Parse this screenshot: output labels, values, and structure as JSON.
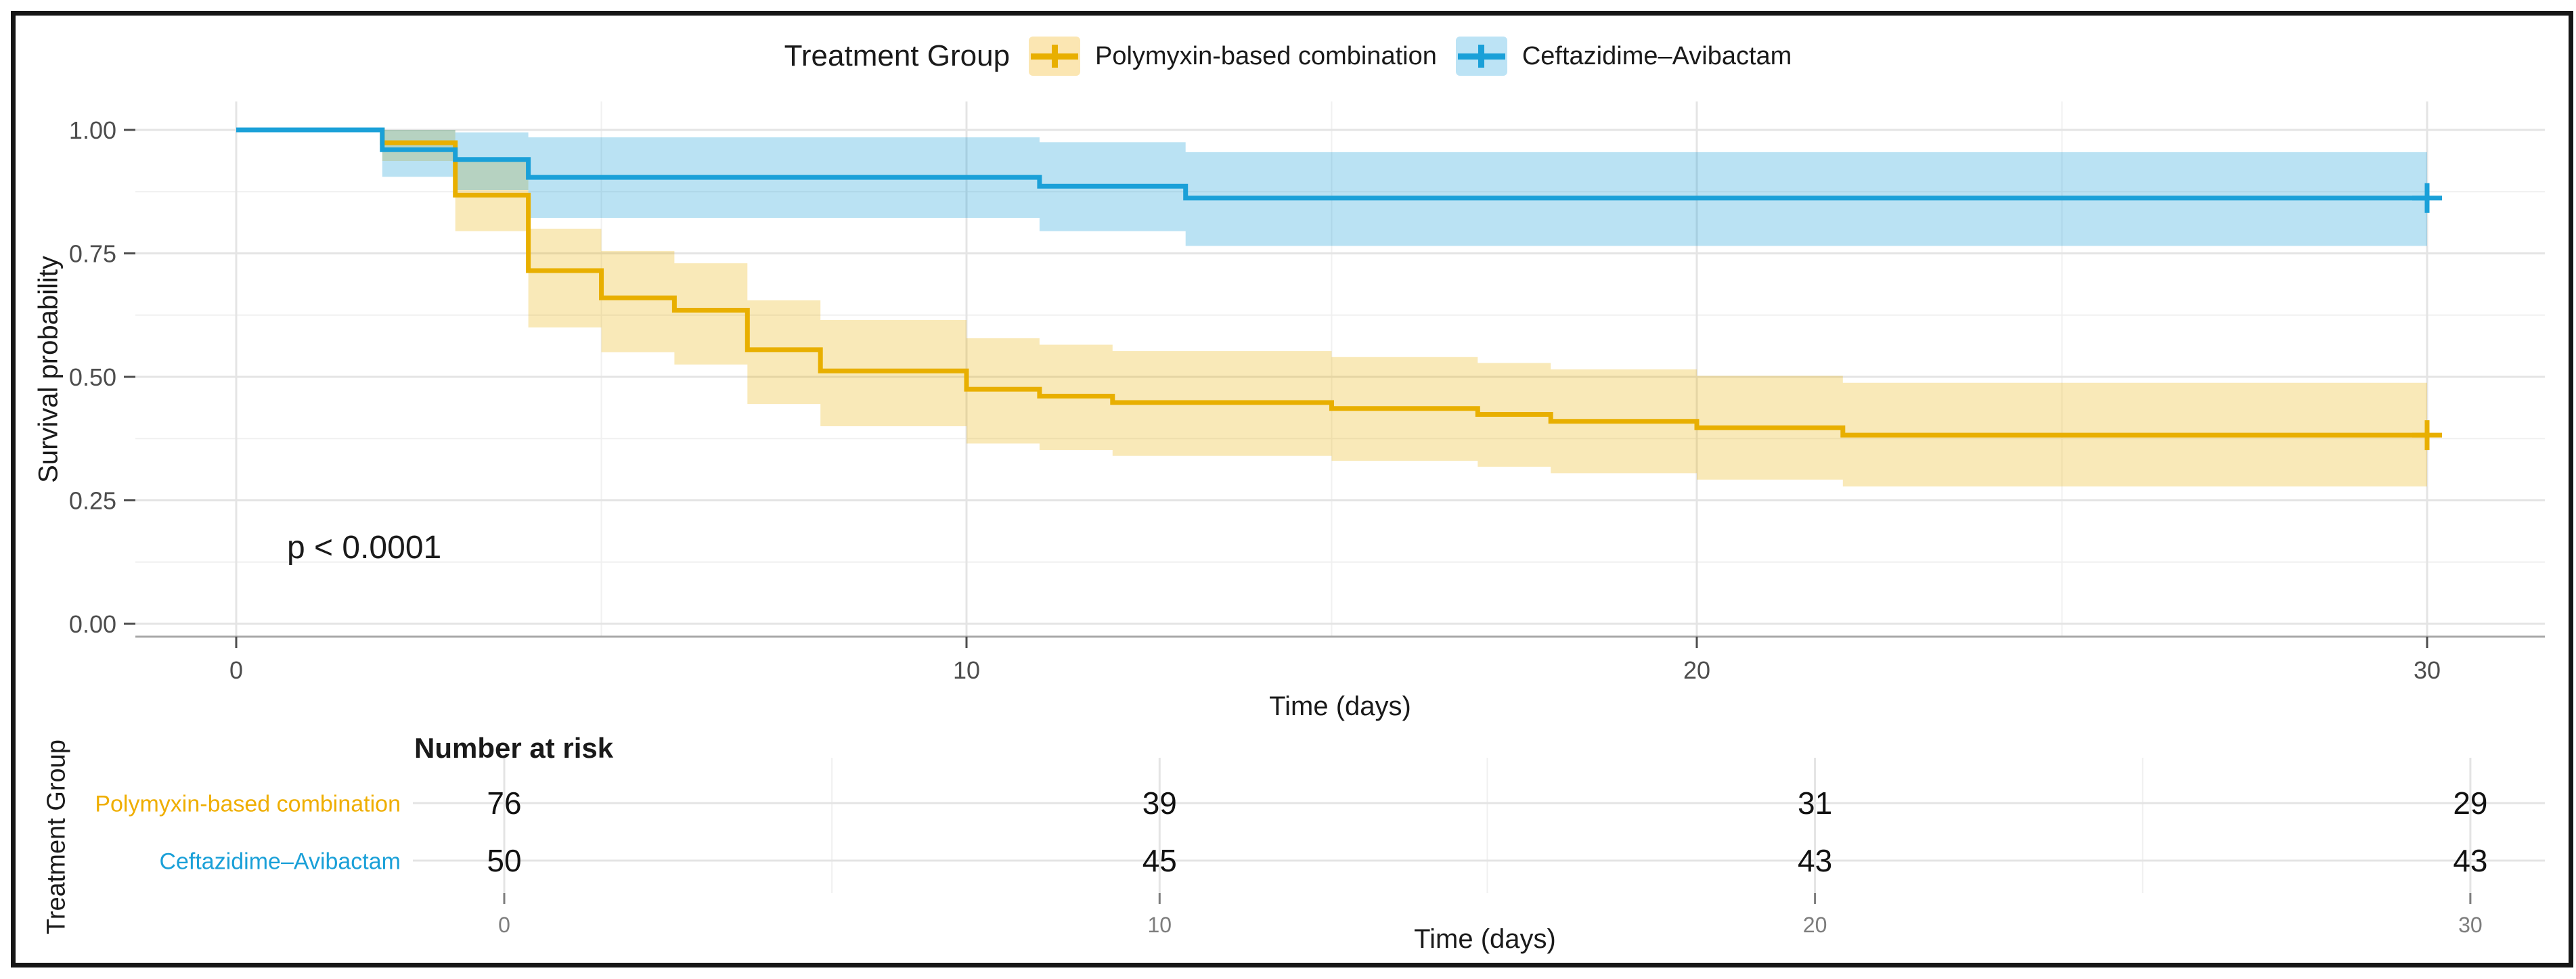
{
  "legend": {
    "title": "Treatment Group",
    "items": [
      {
        "label": "Polymyxin-based combination",
        "color": "#E8AF00",
        "key_fill": "#FBE6B2",
        "glyph": "plus-line-icon"
      },
      {
        "label": "Ceftazidime–Avibactam",
        "color": "#1AA0D8",
        "key_fill": "#BCE3F5",
        "glyph": "plus-line-icon"
      }
    ]
  },
  "chart_data": {
    "type": "line",
    "subtype": "kaplan-meier-step",
    "title": "",
    "xlabel": "Time (days)",
    "ylabel": "Survival probability",
    "annotation": "p < 0.0001",
    "legend_position": "top",
    "grid": true,
    "xlim": [
      0,
      30
    ],
    "ylim": [
      0.0,
      1.0
    ],
    "xticks": [
      0,
      10,
      20,
      30
    ],
    "xtick_labels": [
      "0",
      "10",
      "20",
      "30"
    ],
    "minor_xticks": [
      5,
      15,
      25
    ],
    "yticks": [
      0.0,
      0.25,
      0.5,
      0.75,
      1.0
    ],
    "ytick_labels": [
      "0.00",
      "0.25",
      "0.50",
      "0.75",
      "1.00"
    ],
    "minor_yticks": [
      0.125,
      0.375,
      0.625,
      0.875
    ],
    "series": [
      {
        "name": "Polymyxin-based combination",
        "color": "#E8AF00",
        "band_color": "rgba(233,176,0,0.28)",
        "steps": [
          [
            0,
            1.0
          ],
          [
            2,
            0.974
          ],
          [
            3,
            0.868
          ],
          [
            4,
            0.715
          ],
          [
            5,
            0.66
          ],
          [
            6,
            0.635
          ],
          [
            7,
            0.555
          ],
          [
            8,
            0.512
          ],
          [
            10,
            0.475
          ],
          [
            11,
            0.461
          ],
          [
            12,
            0.448
          ],
          [
            15,
            0.436
          ],
          [
            17,
            0.424
          ],
          [
            18,
            0.41
          ],
          [
            20,
            0.397
          ],
          [
            22,
            0.382
          ],
          [
            30,
            0.382
          ]
        ],
        "censor_times": [
          30
        ],
        "ci": [
          [
            2,
            0.937,
            1.0
          ],
          [
            3,
            0.795,
            0.94
          ],
          [
            4,
            0.6,
            0.8
          ],
          [
            5,
            0.55,
            0.755
          ],
          [
            6,
            0.525,
            0.73
          ],
          [
            7,
            0.445,
            0.655
          ],
          [
            8,
            0.4,
            0.615
          ],
          [
            10,
            0.365,
            0.578
          ],
          [
            11,
            0.352,
            0.565
          ],
          [
            12,
            0.34,
            0.552
          ],
          [
            15,
            0.33,
            0.54
          ],
          [
            17,
            0.318,
            0.528
          ],
          [
            18,
            0.305,
            0.515
          ],
          [
            20,
            0.292,
            0.502
          ],
          [
            22,
            0.278,
            0.488
          ],
          [
            30,
            0.278,
            0.488
          ]
        ]
      },
      {
        "name": "Ceftazidime–Avibactam",
        "color": "#1AA0D8",
        "band_color": "rgba(26,160,216,0.30)",
        "steps": [
          [
            0,
            1.0
          ],
          [
            2,
            0.96
          ],
          [
            3,
            0.94
          ],
          [
            4,
            0.904
          ],
          [
            11,
            0.886
          ],
          [
            13,
            0.862
          ],
          [
            30,
            0.862
          ]
        ],
        "censor_times": [
          30
        ],
        "ci": [
          [
            2,
            0.905,
            1.0
          ],
          [
            3,
            0.878,
            0.995
          ],
          [
            4,
            0.822,
            0.985
          ],
          [
            11,
            0.795,
            0.975
          ],
          [
            13,
            0.765,
            0.955
          ],
          [
            30,
            0.765,
            0.955
          ]
        ]
      }
    ],
    "risk_table": {
      "title": "Number at risk",
      "ylabel": "Treatment Group",
      "xlabel": "Time (days)",
      "xticks": [
        0,
        10,
        20,
        30
      ],
      "xtick_labels": [
        "0",
        "10",
        "20",
        "30"
      ],
      "rows": [
        {
          "label": "Polymyxin-based combination",
          "color": "#EFAE00",
          "values": [
            "76",
            "39",
            "31",
            "29"
          ]
        },
        {
          "label": "Ceftazidime–Avibactam",
          "color": "#1AA0D8",
          "values": [
            "50",
            "45",
            "43",
            "43"
          ]
        }
      ]
    },
    "style": {
      "tick_label_color": "#4D4D4D",
      "risk_tick_label_color": "#7d7d7d",
      "major_grid_color": "#E4E4E4",
      "minor_grid_color": "#F0F0F0",
      "axis_line_color": "#A8A8A8",
      "frame_color": "#161616"
    }
  }
}
